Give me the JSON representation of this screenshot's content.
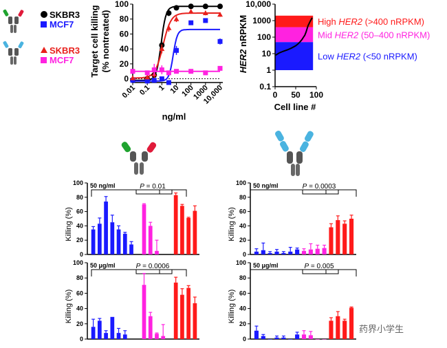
{
  "watermark": "药界小学生",
  "legend": {
    "set1": [
      {
        "label": "SKBR3",
        "color": "#000000",
        "marker": "circle"
      },
      {
        "label": "MCF7",
        "color": "#1a1aff",
        "marker": "square"
      }
    ],
    "set2": [
      {
        "label": "SKBR3",
        "color": "#e8201c",
        "marker": "triangle"
      },
      {
        "label": "MCF7",
        "color": "#ff22e0",
        "marker": "square"
      }
    ]
  },
  "colors": {
    "blue": "#1a1aff",
    "magenta": "#ff22e0",
    "red": "#ff1a1a",
    "black": "#000000"
  },
  "chart_data": [
    {
      "id": "dose_response",
      "type": "scatter",
      "xlabel": "ng/ml",
      "ylabel": [
        "Target cell killing",
        "(% nontreated)"
      ],
      "xscale": "log",
      "xticks": [
        "0.01",
        "0.1",
        "1",
        "10",
        "100",
        "1000",
        "10,000"
      ],
      "yticks": [
        "0",
        "20",
        "40",
        "60",
        "80",
        "100"
      ],
      "ylim": [
        -5,
        100
      ],
      "series": [
        {
          "name": "SKBR3",
          "color": "#000000",
          "marker": "circle",
          "x": [
            0.01,
            0.1,
            0.3,
            1,
            3,
            10,
            100,
            1000,
            10000
          ],
          "y": [
            -2,
            0,
            5,
            45,
            88,
            95,
            97,
            97,
            97
          ],
          "err": [
            2,
            2,
            4,
            6,
            4,
            3,
            2,
            2,
            2
          ]
        },
        {
          "name": "MCF7",
          "color": "#1a1aff",
          "marker": "square",
          "x": [
            0.01,
            0.1,
            0.3,
            1,
            3,
            10,
            100,
            1000,
            10000
          ],
          "y": [
            -2,
            -3,
            -2,
            0,
            -5,
            38,
            75,
            78,
            50
          ],
          "err": [
            2,
            2,
            2,
            2,
            3,
            6,
            3,
            3,
            4
          ]
        },
        {
          "name": "SKBR3",
          "color": "#e8201c",
          "marker": "triangle",
          "x": [
            0.01,
            0.1,
            0.3,
            1,
            3,
            10,
            100,
            1000,
            10000
          ],
          "y": [
            1,
            2,
            6,
            40,
            68,
            80,
            90,
            88,
            86
          ],
          "err": [
            3,
            3,
            5,
            6,
            5,
            4,
            3,
            3,
            3
          ]
        },
        {
          "name": "MCF7",
          "color": "#ff22e0",
          "marker": "square",
          "x": [
            0.01,
            0.1,
            0.3,
            1,
            3,
            10,
            100,
            1000,
            10000
          ],
          "y": [
            10,
            8,
            12,
            12,
            8,
            10,
            10,
            8,
            14
          ],
          "err": [
            3,
            3,
            8,
            6,
            3,
            3,
            3,
            3,
            3
          ]
        }
      ]
    },
    {
      "id": "her2_expression",
      "type": "line",
      "xlabel": "Cell line #",
      "ylabel": "HER2 nRPKM",
      "yscale": "log",
      "xticks": [
        "0",
        "50",
        "100"
      ],
      "yticks": [
        "0.1",
        "1",
        "10",
        "100",
        "1000",
        "10,000"
      ],
      "xlim": [
        0,
        100
      ],
      "ylim": [
        0.1,
        10000
      ],
      "bands": [
        {
          "label_pre": "High ",
          "gene": "HER2",
          "label_post": " (>400 nRPKM)",
          "color": "#ff1a1a",
          "range": [
            400,
            2000
          ]
        },
        {
          "label_pre": "Mid ",
          "gene": "HER2",
          "label_post": "  (50–400 nRPKM)",
          "color": "#ff22e0",
          "range": [
            50,
            400
          ]
        },
        {
          "label_pre": "Low ",
          "gene": "HER2",
          "label_post": " (<50 nRPKM)",
          "color": "#1a1aff",
          "range": [
            1,
            50
          ]
        }
      ],
      "x": [
        1,
        10,
        20,
        30,
        40,
        50,
        55,
        60,
        65,
        70,
        72,
        75,
        78,
        80,
        85,
        90
      ],
      "y": [
        8,
        11,
        14,
        17,
        22,
        30,
        38,
        50,
        70,
        110,
        130,
        200,
        350,
        500,
        900,
        1500
      ]
    },
    {
      "id": "bars_bispecific_low",
      "type": "bar",
      "annotation": "50 ng/ml",
      "pvalue_label": "P",
      "pvalue_text": " = 0.01",
      "ylabel": "Killing (%)",
      "yticks": [
        "0",
        "20",
        "40",
        "60",
        "80",
        "100"
      ],
      "ylim": [
        0,
        100
      ],
      "values": [
        35,
        43,
        74,
        45,
        35,
        29,
        14,
        null,
        70,
        40,
        5,
        null,
        null,
        83,
        68,
        51,
        61
      ],
      "err": [
        4,
        8,
        7,
        10,
        5,
        2,
        4,
        null,
        1,
        5,
        15,
        null,
        null,
        3,
        2,
        1,
        7
      ],
      "bar_colors": [
        "blue",
        "blue",
        "blue",
        "blue",
        "blue",
        "blue",
        "blue",
        null,
        "magenta",
        "magenta",
        "magenta",
        null,
        null,
        "red",
        "red",
        "red",
        "red"
      ]
    },
    {
      "id": "bars_bispecific_high",
      "type": "bar",
      "annotation": "50 μg/ml",
      "pvalue_label": "P",
      "pvalue_text": " = 0.0006",
      "ylabel": "Killing (%)",
      "yticks": [
        "0",
        "20",
        "40",
        "60",
        "80",
        "100"
      ],
      "ylim": [
        0,
        100
      ],
      "values": [
        16,
        24,
        8,
        29,
        8,
        6,
        null,
        null,
        71,
        30,
        7,
        4,
        null,
        74,
        58,
        67,
        47
      ],
      "err": [
        10,
        3,
        3,
        0,
        6,
        5,
        null,
        null,
        15,
        5,
        1,
        15,
        null,
        7,
        8,
        3,
        8
      ],
      "bar_colors": [
        "blue",
        "blue",
        "blue",
        "blue",
        "blue",
        "blue",
        null,
        null,
        "magenta",
        "magenta",
        "magenta",
        "magenta",
        null,
        "red",
        "red",
        "red",
        "red"
      ]
    },
    {
      "id": "bars_igg_low",
      "type": "bar",
      "annotation": "50 ng/ml",
      "pvalue_label": "P",
      "pvalue_text": " = 0.0003",
      "ylabel": "Killing (%)",
      "yticks": [
        "0",
        "20",
        "40",
        "60",
        "80",
        "100"
      ],
      "ylim": [
        0,
        100
      ],
      "values": [
        4,
        6,
        2,
        4,
        2,
        4,
        7,
        5,
        7,
        8,
        9,
        38,
        48,
        43,
        50
      ],
      "err": [
        4,
        10,
        2,
        3,
        2,
        6,
        2,
        3,
        8,
        5,
        4,
        5,
        6,
        4,
        5
      ],
      "bar_colors": [
        "blue",
        "blue",
        "blue",
        "blue",
        "blue",
        "blue",
        "blue",
        "magenta",
        "magenta",
        "magenta",
        "magenta",
        "red",
        "red",
        "red",
        "red"
      ]
    },
    {
      "id": "bars_igg_high",
      "type": "bar",
      "annotation": "50 μg/ml",
      "pvalue_label": "P",
      "pvalue_text": " = 0.005",
      "ylabel": "Killing (%)",
      "yticks": [
        "0",
        "20",
        "40",
        "60",
        "80",
        "100"
      ],
      "ylim": [
        0,
        100
      ],
      "values": [
        11,
        4,
        0,
        2,
        2,
        0,
        6,
        6,
        5,
        0,
        0,
        24,
        30,
        24,
        41
      ],
      "err": [
        6,
        2,
        0,
        2,
        2,
        0,
        3,
        5,
        5,
        0,
        0,
        4,
        6,
        2,
        1
      ],
      "bar_colors": [
        "blue",
        "blue",
        "blue",
        "blue",
        "blue",
        "blue",
        "blue",
        "magenta",
        "magenta",
        "magenta",
        "magenta",
        "red",
        "red",
        "red",
        "red"
      ]
    }
  ]
}
